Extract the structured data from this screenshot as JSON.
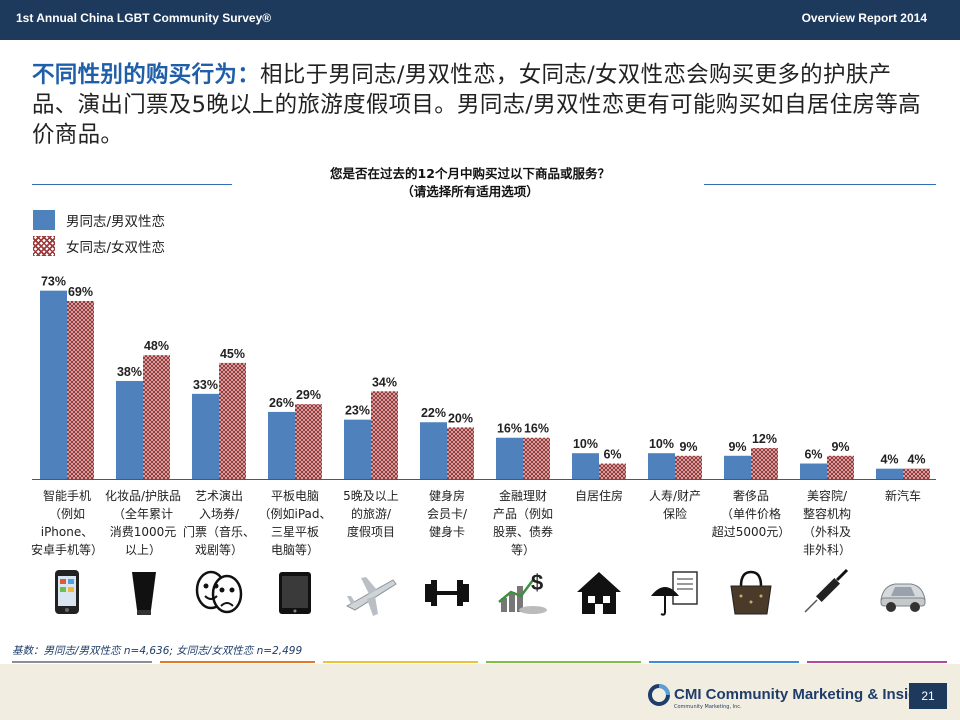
{
  "header": {
    "left_title": "1st Annual China LGBT Community Survey®",
    "right_title": "Overview Report 2014"
  },
  "headline": {
    "emphasis": "不同性别的购买行为：",
    "body": "相比于男同志/男双性恋，女同志/女双性恋会购买更多的护肤产品、演出门票及5晚以上的旅游度假项目。男同志/男双性恋更有可能购买如自居住房等高价商品。"
  },
  "chart_data": {
    "type": "bar",
    "title": "您是否在过去的12个月中购买过以下商品或服务？",
    "subtitle": "（请选择所有适用选项）",
    "categories": [
      "智能手机（例如iPhone、安卓手机等）",
      "化妆品/护肤品（全年累计消费1000元以上）",
      "艺术演出入场券/门票（音乐、戏剧等）",
      "平板电脑（例如iPad、三星平板电脑等）",
      "5晚及以上的旅游/度假项目",
      "健身房会员卡/健身卡",
      "金融理财产品（例如股票、债券等）",
      "自居住房",
      "人寿/财产保险",
      "奢侈品（单件价格超过5000元）",
      "美容院/整容机构（外科及非外科）",
      "新汽车"
    ],
    "series": [
      {
        "name": "男同志/男双性恋",
        "values": [
          73,
          38,
          33,
          26,
          23,
          22,
          16,
          10,
          10,
          9,
          6,
          4
        ],
        "color": "#4f81bd"
      },
      {
        "name": "女同志/女双性恋",
        "values": [
          69,
          48,
          45,
          29,
          34,
          20,
          16,
          6,
          9,
          12,
          9,
          4
        ],
        "color": "#9b3a3a",
        "pattern": "crosshatch"
      }
    ],
    "value_suffix": "%",
    "ylim": [
      0,
      80
    ],
    "grid": false,
    "legend_position": "top-left"
  },
  "category_label_lines": [
    [
      "智能手机",
      "（例如iPhone、",
      "安卓手机等）"
    ],
    [
      "化妆品/护肤品",
      "（全年累计",
      "消费1000元",
      "以上）"
    ],
    [
      "艺术演出",
      "入场券/",
      "门票（音乐、",
      "戏剧等）"
    ],
    [
      "平板电脑",
      "（例如iPad、",
      "三星平板",
      "电脑等）"
    ],
    [
      "5晚及以上",
      "的旅游/",
      "度假项目"
    ],
    [
      "健身房",
      "会员卡/",
      "健身卡"
    ],
    [
      "金融理财",
      "产品（例如",
      "股票、债券",
      "等）"
    ],
    [
      "自居住房"
    ],
    [
      "人寿/财产",
      "保险"
    ],
    [
      "奢侈品",
      "（单件价格",
      "超过5000元）"
    ],
    [
      "美容院/",
      "整容机构",
      "（外科及",
      "非外科）"
    ],
    [
      "新汽车"
    ]
  ],
  "icons": [
    "smartphone-icon",
    "cosmetics-tube-icon",
    "theater-masks-icon",
    "tablet-icon",
    "airplane-icon",
    "dumbbell-icon",
    "finance-chart-icon",
    "house-icon",
    "insurance-umbrella-icon",
    "handbag-icon",
    "syringe-icon",
    "car-icon"
  ],
  "footnote": "基数：男同志/男双性恋 n=4,636; 女同志/女双性恋 n=2,499",
  "footer": {
    "brand": "CMI Community Marketing & Insights",
    "brand_sub": "Community Marketing, Inc.",
    "page_number": "21"
  },
  "colors": {
    "header_bg": "#1d3a5c",
    "accent_blue": "#1f5ea8",
    "male_bar": "#4f81bd",
    "female_hatch": "#9b3a3a",
    "footer_bg": "#f1ede1"
  }
}
